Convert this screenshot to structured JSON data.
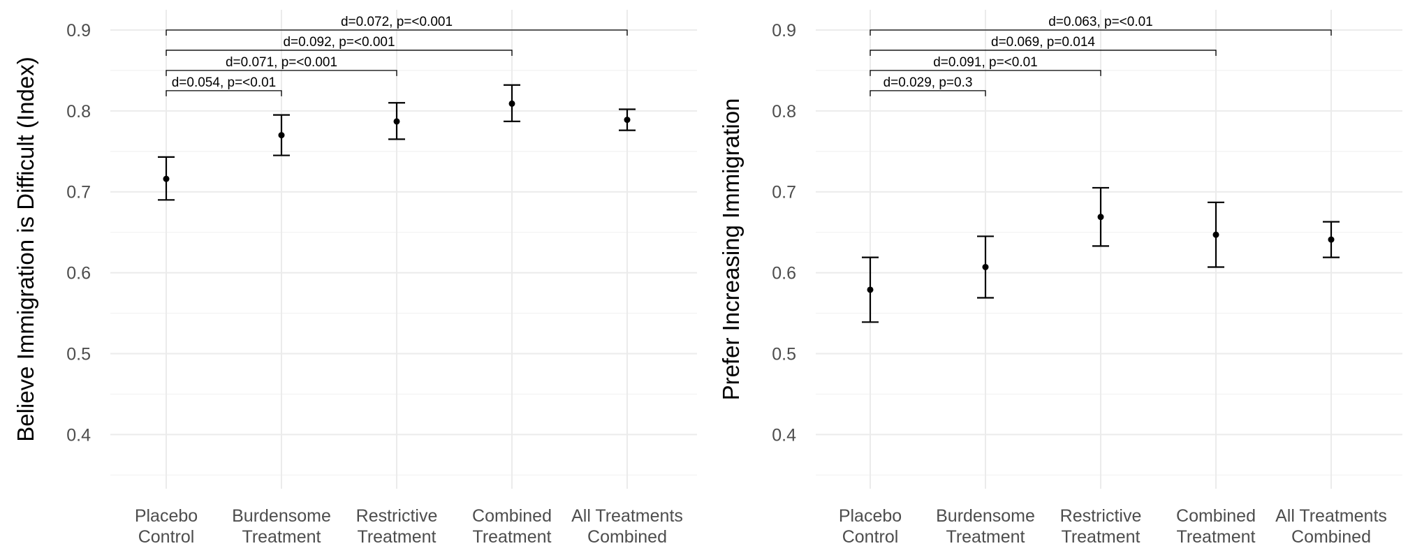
{
  "chart_data": [
    {
      "type": "scatter",
      "ylabel": "Believe Immigration is Difficult (Index)",
      "categories": [
        [
          "Placebo",
          "Control"
        ],
        [
          "Burdensome",
          "Treatment"
        ],
        [
          "Restrictive",
          "Treatment"
        ],
        [
          "Combined",
          "Treatment"
        ],
        [
          "All Treatments",
          "Combined"
        ]
      ],
      "values": [
        0.716,
        0.77,
        0.787,
        0.809,
        0.789
      ],
      "ci_lower": [
        0.69,
        0.745,
        0.765,
        0.787,
        0.776
      ],
      "ci_upper": [
        0.743,
        0.795,
        0.81,
        0.832,
        0.802
      ],
      "yticks": [
        0.4,
        0.5,
        0.6,
        0.7,
        0.8,
        0.9
      ],
      "ylim": [
        0.333,
        0.925
      ],
      "grid": true,
      "comparisons": [
        {
          "from": 0,
          "to": 1,
          "y": 0.825,
          "label": "d=0.054, p=<0.01"
        },
        {
          "from": 0,
          "to": 2,
          "y": 0.85,
          "label": "d=0.071, p=<0.001"
        },
        {
          "from": 0,
          "to": 3,
          "y": 0.875,
          "label": "d=0.092, p=<0.001"
        },
        {
          "from": 0,
          "to": 4,
          "y": 0.9,
          "label": "d=0.072, p=<0.001"
        }
      ]
    },
    {
      "type": "scatter",
      "ylabel": "Prefer Increasing Immigration",
      "categories": [
        [
          "Placebo",
          "Control"
        ],
        [
          "Burdensome",
          "Treatment"
        ],
        [
          "Restrictive",
          "Treatment"
        ],
        [
          "Combined",
          "Treatment"
        ],
        [
          "All Treatments",
          "Combined"
        ]
      ],
      "values": [
        0.579,
        0.607,
        0.669,
        0.647,
        0.641
      ],
      "ci_lower": [
        0.539,
        0.569,
        0.633,
        0.607,
        0.619
      ],
      "ci_upper": [
        0.619,
        0.645,
        0.705,
        0.687,
        0.663
      ],
      "yticks": [
        0.4,
        0.5,
        0.6,
        0.7,
        0.8,
        0.9
      ],
      "ylim": [
        0.333,
        0.925
      ],
      "grid": true,
      "comparisons": [
        {
          "from": 0,
          "to": 1,
          "y": 0.825,
          "label": "d=0.029, p=0.3"
        },
        {
          "from": 0,
          "to": 2,
          "y": 0.85,
          "label": "d=0.091, p=<0.01"
        },
        {
          "from": 0,
          "to": 3,
          "y": 0.875,
          "label": "d=0.069, p=0.014"
        },
        {
          "from": 0,
          "to": 4,
          "y": 0.9,
          "label": "d=0.063, p=<0.01"
        }
      ]
    }
  ]
}
